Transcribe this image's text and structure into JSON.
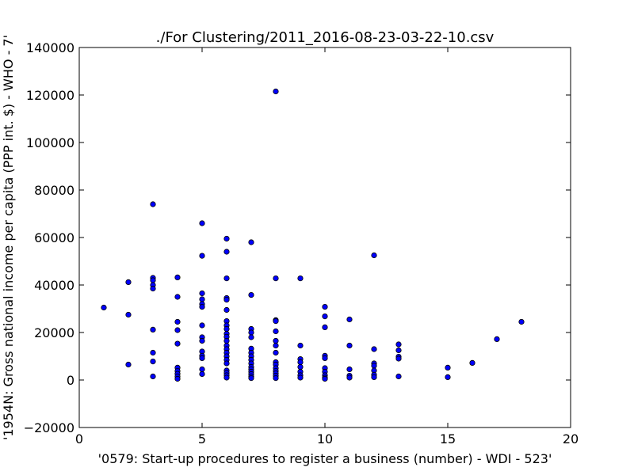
{
  "chart_data": {
    "type": "scatter",
    "title": "./For Clustering/2011_2016-08-23-03-22-10.csv",
    "xlabel": "'0579: Start-up procedures to register a business  (number) - WDI - 523'",
    "ylabel": "'1954N: Gross national income per capita (PPP int. $) - WHO - 7'",
    "xlim": [
      0,
      20
    ],
    "ylim": [
      -20000,
      140000
    ],
    "x_ticks": [
      "0",
      "5",
      "10",
      "15",
      "20"
    ],
    "y_ticks": [
      "−20000",
      "0",
      "20000",
      "40000",
      "60000",
      "80000",
      "100000",
      "120000",
      "140000"
    ],
    "grid": false,
    "marker_color": "#0000ff",
    "marker_edge": "#000000",
    "points": [
      [
        1,
        30500
      ],
      [
        2,
        41200
      ],
      [
        2,
        27500
      ],
      [
        2,
        6500
      ],
      [
        3,
        74000
      ],
      [
        3,
        43000
      ],
      [
        3,
        42000
      ],
      [
        3,
        40000
      ],
      [
        3,
        38500
      ],
      [
        3,
        21200
      ],
      [
        3,
        11500
      ],
      [
        3,
        7800
      ],
      [
        3,
        1500
      ],
      [
        4,
        43200
      ],
      [
        4,
        35000
      ],
      [
        4,
        24500
      ],
      [
        4,
        21000
      ],
      [
        4,
        15300
      ],
      [
        4,
        5200
      ],
      [
        4,
        3800
      ],
      [
        4,
        2600
      ],
      [
        4,
        1500
      ],
      [
        4,
        500
      ],
      [
        5,
        66000
      ],
      [
        5,
        52300
      ],
      [
        5,
        36500
      ],
      [
        5,
        34000
      ],
      [
        5,
        32000
      ],
      [
        5,
        30800
      ],
      [
        5,
        23000
      ],
      [
        5,
        18000
      ],
      [
        5,
        16500
      ],
      [
        5,
        12000
      ],
      [
        5,
        10200
      ],
      [
        5,
        9200
      ],
      [
        5,
        4500
      ],
      [
        5,
        2500
      ],
      [
        6,
        59500
      ],
      [
        6,
        54000
      ],
      [
        6,
        42800
      ],
      [
        6,
        34500
      ],
      [
        6,
        33800
      ],
      [
        6,
        29500
      ],
      [
        6,
        24800
      ],
      [
        6,
        23000
      ],
      [
        6,
        21500
      ],
      [
        6,
        19500
      ],
      [
        6,
        18200
      ],
      [
        6,
        16500
      ],
      [
        6,
        14500
      ],
      [
        6,
        13000
      ],
      [
        6,
        11500
      ],
      [
        6,
        10000
      ],
      [
        6,
        8500
      ],
      [
        6,
        7000
      ],
      [
        6,
        4000
      ],
      [
        6,
        3000
      ],
      [
        6,
        2000
      ],
      [
        6,
        1000
      ],
      [
        7,
        58000
      ],
      [
        7,
        35800
      ],
      [
        7,
        21500
      ],
      [
        7,
        20000
      ],
      [
        7,
        18000
      ],
      [
        7,
        13200
      ],
      [
        7,
        11500
      ],
      [
        7,
        10000
      ],
      [
        7,
        8500
      ],
      [
        7,
        7000
      ],
      [
        7,
        5500
      ],
      [
        7,
        4500
      ],
      [
        7,
        3500
      ],
      [
        7,
        2500
      ],
      [
        7,
        1500
      ],
      [
        7,
        800
      ],
      [
        8,
        121500
      ],
      [
        8,
        42800
      ],
      [
        8,
        25200
      ],
      [
        8,
        24800
      ],
      [
        8,
        20500
      ],
      [
        8,
        16500
      ],
      [
        8,
        14500
      ],
      [
        8,
        11500
      ],
      [
        8,
        7500
      ],
      [
        8,
        6500
      ],
      [
        8,
        5000
      ],
      [
        8,
        3800
      ],
      [
        8,
        2800
      ],
      [
        8,
        1800
      ],
      [
        8,
        800
      ],
      [
        9,
        42800
      ],
      [
        9,
        14500
      ],
      [
        9,
        8800
      ],
      [
        9,
        7500
      ],
      [
        9,
        5500
      ],
      [
        9,
        3500
      ],
      [
        9,
        2000
      ],
      [
        9,
        1000
      ],
      [
        10,
        30800
      ],
      [
        10,
        26800
      ],
      [
        10,
        22200
      ],
      [
        10,
        10200
      ],
      [
        10,
        9200
      ],
      [
        10,
        5000
      ],
      [
        10,
        3500
      ],
      [
        10,
        2000
      ],
      [
        10,
        1000
      ],
      [
        10,
        500
      ],
      [
        11,
        25500
      ],
      [
        11,
        14500
      ],
      [
        11,
        4500
      ],
      [
        11,
        1800
      ],
      [
        11,
        1000
      ],
      [
        12,
        52500
      ],
      [
        12,
        13000
      ],
      [
        12,
        7000
      ],
      [
        12,
        6000
      ],
      [
        12,
        4000
      ],
      [
        12,
        2200
      ],
      [
        12,
        1200
      ],
      [
        13,
        15000
      ],
      [
        13,
        12500
      ],
      [
        13,
        9800
      ],
      [
        13,
        9000
      ],
      [
        13,
        1500
      ],
      [
        15,
        5200
      ],
      [
        15,
        1200
      ],
      [
        16,
        7200
      ],
      [
        17,
        17200
      ],
      [
        18,
        24500
      ]
    ]
  }
}
